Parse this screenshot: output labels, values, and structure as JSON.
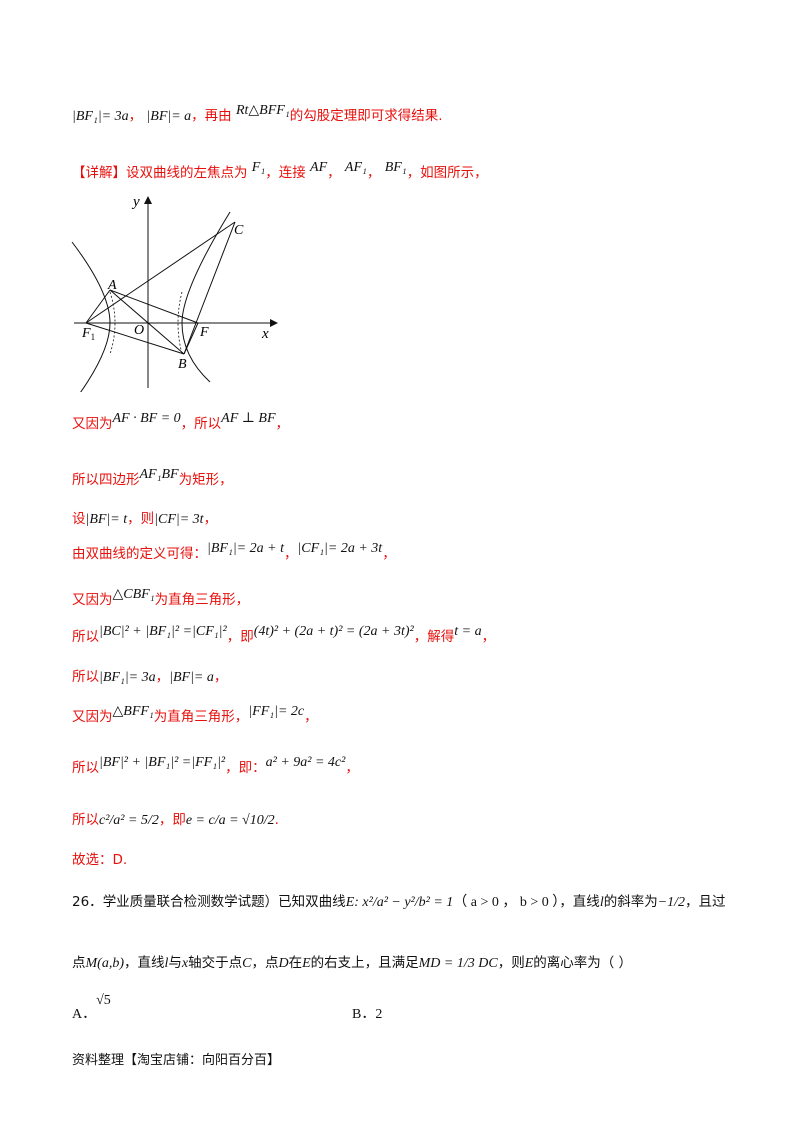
{
  "intro_line": {
    "m1": "|BF₁|= 3a",
    "sep1": "，",
    "m2": "|BF|= a",
    "sep2": "，再由",
    "m3": "Rt△BFF₁",
    "tail": "的勾股定理即可求得结果."
  },
  "detail": {
    "tag": "【详解】",
    "text1": "设双曲线的左焦点为",
    "F1": "F₁",
    "text2": "，连接",
    "AF": "AF",
    "sep": "，",
    "AF1": "AF₁",
    "sep2": "，",
    "BF1": "BF₁",
    "text3": "，如图所示，"
  },
  "figure": {
    "labels": {
      "y": "y",
      "x": "x",
      "C": "C",
      "A": "A",
      "O": "O",
      "F": "F",
      "F1": "F",
      "F1_sub": "1",
      "B": "B"
    }
  },
  "steps": [
    {
      "pre": "又因为",
      "math": "AF · BF = 0",
      "mid": "，所以",
      "math2": "AF ⊥ BF",
      "post": "，"
    },
    {
      "pre": "所以四边形",
      "math": "AF₁BF",
      "post": "为矩形，"
    },
    {
      "pre": "设",
      "math": "|BF|= t",
      "mid": "，则",
      "math2": "|CF|= 3t",
      "post": "，"
    },
    {
      "pre": "由双曲线的定义可得：",
      "math": "|BF₁|= 2a + t",
      "mid": "，",
      "math2": "|CF₁|= 2a + 3t",
      "post": "，"
    },
    {
      "pre": "又因为",
      "math": "△CBF₁",
      "post": "为直角三角形，"
    },
    {
      "pre": "所以",
      "math": "|BC|² + |BF₁|² =|CF₁|²",
      "mid": "，即",
      "math2": "(4t)² + (2a + t)² = (2a + 3t)²",
      "mid2": "，解得",
      "math3": "t = a",
      "post": "，"
    },
    {
      "pre": "所以",
      "math": "|BF₁|= 3a",
      "mid": "，",
      "math2": "|BF|= a",
      "post": "，"
    },
    {
      "pre": "又因为",
      "math": "△BFF₁",
      "mid": "为直角三角形，",
      "math2": "|FF₁|= 2c",
      "post": "，"
    },
    {
      "pre": "所以",
      "math": "|BF|² + |BF₁|² =|FF₁|²",
      "mid": "，即：",
      "math2": "a² + 9a² = 4c²",
      "post": "，"
    },
    {
      "pre": "所以",
      "math": "c²/a² = 5/2",
      "mid": "，即",
      "math2": "e = c/a = √10/2",
      "post": "."
    },
    {
      "pre": "故选：D."
    }
  ],
  "question": {
    "number": "26．",
    "source": "学业质量联合检测数学试题）已知双曲线",
    "eq": "E: x²/a² − y²/b² = 1",
    "cond": "（ a > 0 ， b > 0 ）",
    "text2": "，直线",
    "l": "l",
    "text3": "的斜率为",
    "slope": "−1/2",
    "text4": "，且过",
    "line2_a": "点",
    "M": "M(a,b)",
    "line2_b": "，直线",
    "l2": "l",
    "line2_c": "与",
    "x": "x",
    "line2_d": "轴交于点",
    "C": "C",
    "line2_e": "，点",
    "D": "D",
    "line2_f": "在",
    "E": "E",
    "line2_g": "的右支上，且满足",
    "vec": "MD = 1/3 DC",
    "line2_h": "，则",
    "E2": "E",
    "line2_i": "的离心率为（    ）"
  },
  "choices": [
    {
      "label": "A．",
      "value": "√5"
    },
    {
      "label": "B．",
      "value": "2"
    }
  ],
  "footer": "资料整理【淘宝店铺：向阳百分百】"
}
